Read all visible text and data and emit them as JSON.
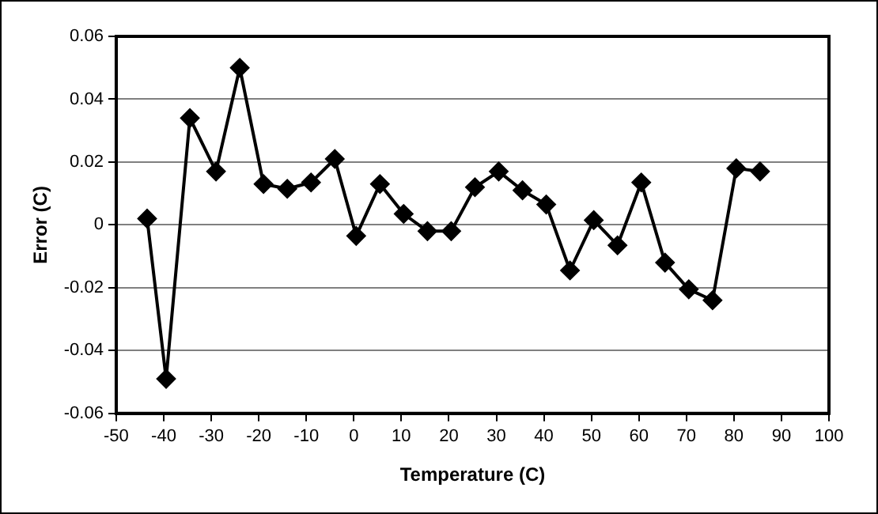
{
  "chart_data": {
    "type": "line",
    "xlabel": "Temperature (C)",
    "ylabel": "Error (C)",
    "x": [
      -43.5,
      -39.5,
      -34.5,
      -29,
      -24,
      -19,
      -14,
      -9,
      -4,
      0.5,
      5.5,
      10.5,
      15.5,
      20.5,
      25.5,
      30.5,
      35.5,
      40.5,
      45.5,
      50.5,
      55.5,
      60.5,
      65.5,
      70.5,
      75.5,
      80.5,
      85.5
    ],
    "series": [
      {
        "color": "#000000",
        "values": [
          0.002,
          -0.049,
          0.034,
          0.017,
          0.05,
          0.013,
          0.0115,
          0.0135,
          0.021,
          -0.0035,
          0.013,
          0.0035,
          -0.002,
          -0.002,
          0.012,
          0.017,
          0.011,
          0.0065,
          -0.0145,
          0.0015,
          -0.0065,
          0.0135,
          -0.012,
          -0.0205,
          -0.024,
          0.018,
          0.017
        ]
      }
    ],
    "xlim": [
      -50,
      100
    ],
    "xticks": [
      -50,
      -40,
      -30,
      -20,
      -10,
      0,
      10,
      20,
      30,
      40,
      50,
      60,
      70,
      80,
      90,
      100
    ],
    "ylim": [
      -0.06,
      0.06
    ],
    "yticks": [
      -0.06,
      -0.04,
      -0.02,
      0,
      0.02,
      0.04,
      0.06
    ],
    "grid": "y",
    "legend": false,
    "marker": "diamond",
    "line_style": "solid"
  }
}
